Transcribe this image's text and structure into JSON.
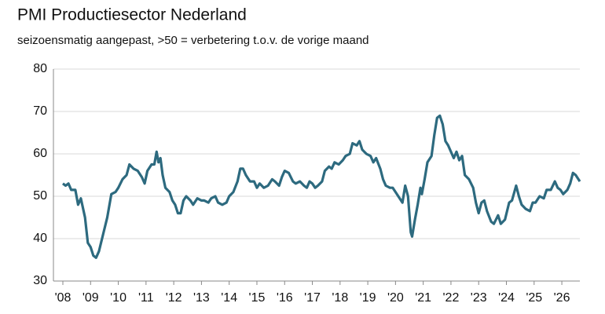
{
  "chart_data": {
    "type": "line",
    "title": "PMI Productiesector Nederland",
    "subtitle": "seizoensmatig aangepast, >50 = verbetering t.o.v. de vorige maand",
    "x": [
      2008.0,
      2008.1,
      2008.2,
      2008.3,
      2008.45,
      2008.55,
      2008.65,
      2008.8,
      2008.9,
      2009.0,
      2009.1,
      2009.2,
      2009.3,
      2009.45,
      2009.6,
      2009.75,
      2009.9,
      2010.0,
      2010.15,
      2010.3,
      2010.4,
      2010.55,
      2010.7,
      2010.85,
      2010.95,
      2011.05,
      2011.2,
      2011.3,
      2011.38,
      2011.45,
      2011.52,
      2011.6,
      2011.7,
      2011.85,
      2011.95,
      2012.05,
      2012.15,
      2012.25,
      2012.35,
      2012.45,
      2012.6,
      2012.7,
      2012.85,
      2013.0,
      2013.1,
      2013.25,
      2013.35,
      2013.5,
      2013.6,
      2013.75,
      2013.9,
      2014.0,
      2014.15,
      2014.3,
      2014.4,
      2014.5,
      2014.6,
      2014.75,
      2014.9,
      2015.0,
      2015.1,
      2015.25,
      2015.4,
      2015.55,
      2015.65,
      2015.8,
      2015.9,
      2016.0,
      2016.15,
      2016.3,
      2016.4,
      2016.55,
      2016.7,
      2016.8,
      2016.9,
      2017.0,
      2017.1,
      2017.2,
      2017.35,
      2017.45,
      2017.6,
      2017.7,
      2017.8,
      2017.95,
      2018.1,
      2018.2,
      2018.35,
      2018.45,
      2018.6,
      2018.7,
      2018.8,
      2018.95,
      2019.1,
      2019.2,
      2019.3,
      2019.45,
      2019.55,
      2019.65,
      2019.8,
      2019.9,
      2020.0,
      2020.1,
      2020.25,
      2020.35,
      2020.45,
      2020.55,
      2020.6,
      2020.7,
      2020.8,
      2020.9,
      2020.95,
      2021.05,
      2021.15,
      2021.3,
      2021.4,
      2021.5,
      2021.6,
      2021.7,
      2021.8,
      2021.9,
      2022.0,
      2022.1,
      2022.2,
      2022.3,
      2022.4,
      2022.5,
      2022.65,
      2022.8,
      2022.9,
      2023.0,
      2023.1,
      2023.2,
      2023.3,
      2023.45,
      2023.55,
      2023.7,
      2023.8,
      2023.95,
      2024.1,
      2024.2,
      2024.35,
      2024.45,
      2024.55,
      2024.7,
      2024.85,
      2024.95,
      2025.05,
      2025.2,
      2025.35,
      2025.45,
      2025.6,
      2025.75,
      2025.85,
      2025.95,
      2026.05,
      2026.2,
      2026.3,
      2026.4,
      2026.5,
      2026.65
    ],
    "series": [
      {
        "color": "#2d6a7f",
        "values": [
          53,
          52.5,
          53,
          51.5,
          51.5,
          48,
          49.5,
          45,
          39,
          38,
          36,
          35.5,
          37,
          41,
          45,
          50.5,
          51,
          52,
          54,
          55,
          57.5,
          56.5,
          56,
          54.5,
          53,
          56,
          57.5,
          57.5,
          60.5,
          58,
          59,
          55,
          52,
          51,
          49,
          48,
          46,
          46,
          49,
          50,
          49,
          48,
          49.5,
          49,
          49,
          48.5,
          49.5,
          50,
          48.5,
          48,
          48.5,
          50,
          51,
          53.5,
          56.5,
          56.5,
          55,
          53.5,
          53.5,
          52,
          53,
          52,
          52.5,
          54,
          53.5,
          52.5,
          54.5,
          56,
          55.5,
          53.5,
          53,
          53.5,
          52.5,
          52,
          53.5,
          53,
          52,
          52.5,
          53.5,
          56,
          57,
          56.5,
          58,
          57.5,
          58.5,
          59.5,
          60,
          62.5,
          62,
          63,
          61,
          60,
          59.5,
          58,
          59,
          56.5,
          54,
          52.5,
          52,
          52,
          51,
          50,
          48.5,
          52.5,
          50,
          41.5,
          40.5,
          44.5,
          48,
          52,
          50.5,
          54,
          58,
          59.5,
          64.5,
          68.5,
          69,
          67,
          63,
          62,
          60.5,
          59,
          60.5,
          58.5,
          59.5,
          55,
          54,
          52,
          48.5,
          46,
          48.5,
          49,
          46.5,
          44,
          43.5,
          45.5,
          43.5,
          44.5,
          48.5,
          49,
          52.5,
          50,
          48,
          47,
          46.5,
          48.5,
          48.5,
          50,
          49.5,
          51.5,
          51.5,
          53.5,
          52,
          51.5,
          50.5,
          51.5,
          53,
          55.5,
          55,
          53.5
        ]
      }
    ],
    "xlim": [
      2008,
      2026.65
    ],
    "xticks": [
      {
        "value": 2008,
        "label": "'08"
      },
      {
        "value": 2009,
        "label": "'09"
      },
      {
        "value": 2010,
        "label": "'10"
      },
      {
        "value": 2011,
        "label": "'11"
      },
      {
        "value": 2012,
        "label": "'12"
      },
      {
        "value": 2013,
        "label": "'13"
      },
      {
        "value": 2014,
        "label": "'14"
      },
      {
        "value": 2015,
        "label": "'15"
      },
      {
        "value": 2016,
        "label": "'16"
      },
      {
        "value": 2017,
        "label": "'17"
      },
      {
        "value": 2018,
        "label": "'18"
      },
      {
        "value": 2019,
        "label": "'19"
      },
      {
        "value": 2020,
        "label": "'20"
      },
      {
        "value": 2021,
        "label": "'21"
      },
      {
        "value": 2022,
        "label": "'22"
      },
      {
        "value": 2023,
        "label": "'23"
      },
      {
        "value": 2024,
        "label": "'24"
      },
      {
        "value": 2025,
        "label": "'25"
      },
      {
        "value": 2026,
        "label": "'26"
      }
    ],
    "ylim": [
      30,
      80
    ],
    "yticks": [
      30,
      40,
      50,
      60,
      70,
      80
    ],
    "grid": true
  }
}
